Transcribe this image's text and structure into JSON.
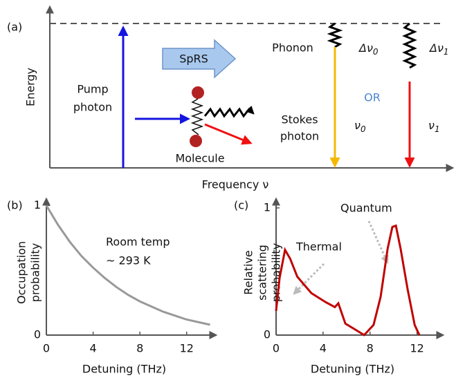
{
  "diagram": {
    "label": "(a)",
    "y_label": "Energy",
    "x_label": "Frequency ν",
    "process": "SpRS",
    "pump": [
      "Pump",
      "photon"
    ],
    "molecule": "Molecule",
    "phonon": "Phonon",
    "or": "OR",
    "stokes": [
      "Stokes",
      "photon"
    ],
    "delta_nu_0": {
      "text": "Δν",
      "sub": "0"
    },
    "delta_nu_1": {
      "text": "Δν",
      "sub": "1"
    },
    "nu_0": {
      "text": "ν",
      "sub": "0"
    },
    "nu_1": {
      "text": "ν",
      "sub": "1"
    }
  },
  "chart_data": [
    {
      "type": "line",
      "label": "(b)",
      "y_label": [
        "Occupation",
        "probability"
      ],
      "x_label": "Detuning (THz)",
      "annotations": [
        "Room temp",
        "~ 293 K"
      ],
      "x": [
        0,
        1,
        2,
        3,
        4,
        5,
        6,
        7,
        8,
        9,
        10,
        11,
        12,
        13,
        14
      ],
      "series": [
        {
          "color": "#999999",
          "values": [
            1,
            0.85,
            0.72,
            0.61,
            0.52,
            0.44,
            0.37,
            0.31,
            0.26,
            0.22,
            0.18,
            0.15,
            0.12,
            0.1,
            0.08
          ]
        }
      ],
      "xlim": [
        0,
        14.5
      ],
      "ylim": [
        0,
        1.05
      ],
      "xticks": [
        0,
        4,
        8,
        12
      ],
      "yticks": [
        0,
        1
      ]
    },
    {
      "type": "line",
      "label": "(c)",
      "y_label": [
        "Relative",
        "scattering",
        "probability"
      ],
      "x_label": "Detuning (THz)",
      "annotations": [
        "Thermal",
        "Quantum"
      ],
      "x": [
        0,
        0.3,
        0.76,
        1.2,
        1.8,
        3,
        4.2,
        5,
        5.3,
        5.6,
        5.9,
        6.8,
        7.5,
        8.3,
        8.9,
        9.5,
        9.9,
        10.2,
        10.6,
        11.2,
        11.8,
        12.2
      ],
      "series": [
        {
          "color": "#c00000",
          "values": [
            0.19,
            0.45,
            0.67,
            0.6,
            0.46,
            0.33,
            0.26,
            0.22,
            0.25,
            0.17,
            0.09,
            0.04,
            0,
            0.08,
            0.3,
            0.68,
            0.85,
            0.86,
            0.68,
            0.36,
            0.08,
            0
          ]
        }
      ],
      "xlim": [
        0,
        14.2
      ],
      "ylim": [
        0,
        1.07
      ],
      "xticks": [
        0,
        4,
        8,
        12
      ],
      "yticks": [
        0,
        1
      ]
    }
  ]
}
